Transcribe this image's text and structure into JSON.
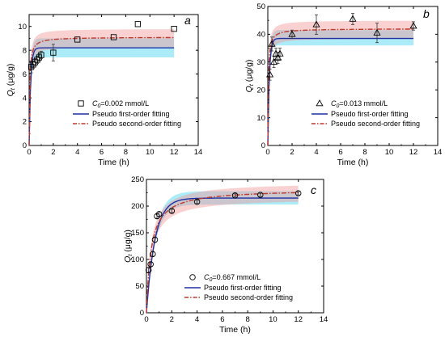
{
  "colors": {
    "first_order": "#1f2fa3",
    "second_order": "#c0392b",
    "band_first": "#66dcf2",
    "band_second": "#f29a9a",
    "band_overlap": "#b9b2b2"
  },
  "chart_data": [
    {
      "type": "line",
      "panel_label": "a",
      "xlabel": "Time (h)",
      "ylabel_main": "Q",
      "ylabel_sub": "t",
      "ylabel_unit": " (μg/g)",
      "xlim": [
        0,
        14
      ],
      "ylim": [
        0,
        11
      ],
      "xticks": [
        "0",
        "2",
        "4",
        "6",
        "8",
        "10",
        "12",
        "14"
      ],
      "yticks": [
        "0",
        "2",
        "4",
        "6",
        "8",
        "10"
      ],
      "marker": "square",
      "legend": {
        "c0_var": "C",
        "c0_sub": "0",
        "c0_value": "=0.002 mmol/L",
        "first_order": "Pseudo first-order fitting",
        "second_order": "Pseudo second-order fitting"
      },
      "series": [
        {
          "kind": "observed",
          "x": [
            0.17,
            0.33,
            0.5,
            0.67,
            0.83,
            1.0,
            2.0,
            4.0,
            7.0,
            9.0,
            12.0
          ],
          "y": [
            6.6,
            6.8,
            7.0,
            7.2,
            7.4,
            7.6,
            7.8,
            8.9,
            9.1,
            10.2,
            9.8
          ],
          "err": [
            0.5,
            0.3,
            0.3,
            0.3,
            0.3,
            0.3,
            0.7,
            0,
            0,
            0,
            0
          ]
        },
        {
          "kind": "first_order",
          "qe": 8.2,
          "k": 8.0,
          "band_low": 7.4,
          "band_high": 9.0
        },
        {
          "kind": "second_order",
          "qe": 9.1,
          "k2": 2.5,
          "band_low": 8.3,
          "band_high": 9.8
        }
      ]
    },
    {
      "type": "line",
      "panel_label": "b",
      "xlabel": "Time (h)",
      "ylabel_main": "Q",
      "ylabel_sub": "t",
      "ylabel_unit": " (μg/g)",
      "xlim": [
        0,
        14
      ],
      "ylim": [
        0,
        50
      ],
      "xticks": [
        "0",
        "2",
        "4",
        "6",
        "8",
        "10",
        "12",
        "14"
      ],
      "yticks": [
        "0",
        "10",
        "20",
        "30",
        "40",
        "50"
      ],
      "marker": "triangle",
      "legend": {
        "c0_var": "C",
        "c0_sub": "0",
        "c0_value": "=0.013 mmol/L",
        "first_order": "Pseudo first-order fitting",
        "second_order": "Pseudo second-order fitting"
      },
      "series": [
        {
          "kind": "observed",
          "x": [
            0.17,
            0.33,
            0.5,
            0.67,
            0.83,
            1.0,
            2.0,
            4.0,
            7.0,
            9.0,
            12.0
          ],
          "y": [
            25.5,
            36.5,
            30.0,
            33.0,
            31.5,
            33.0,
            40.0,
            43.5,
            45.5,
            40.5,
            43.0
          ],
          "err": [
            2.0,
            2.5,
            2.0,
            2.0,
            2.0,
            2.0,
            1.5,
            3.5,
            2.0,
            3.5,
            1.5
          ]
        },
        {
          "kind": "first_order",
          "qe": 38.5,
          "k": 8.0,
          "band_low": 36.0,
          "band_high": 41.5
        },
        {
          "kind": "second_order",
          "qe": 42.0,
          "k2": 0.6,
          "band_low": 38.5,
          "band_high": 45.0
        }
      ]
    },
    {
      "type": "line",
      "panel_label": "c",
      "xlabel": "Time (h)",
      "ylabel_main": "Q",
      "ylabel_sub": "t",
      "ylabel_unit": " (μg/g)",
      "xlim": [
        0,
        14
      ],
      "ylim": [
        0,
        250
      ],
      "xticks": [
        "0",
        "2",
        "4",
        "6",
        "8",
        "10",
        "12",
        "14"
      ],
      "yticks": [
        "0",
        "50",
        "100",
        "150",
        "200",
        "250"
      ],
      "marker": "circle",
      "legend": {
        "c0_var": "C",
        "c0_sub": "0",
        "c0_value": "=0.667 mmol/L",
        "first_order": "Pseudo first-order fitting",
        "second_order": "Pseudo second-order fitting"
      },
      "series": [
        {
          "kind": "observed",
          "x": [
            0.17,
            0.33,
            0.5,
            0.67,
            0.83,
            1.0,
            2.0,
            4.0,
            7.0,
            9.0,
            12.0
          ],
          "y": [
            80,
            91,
            110,
            137,
            181,
            185,
            191,
            208,
            220,
            221,
            224
          ],
          "err": [
            5,
            4,
            4,
            5,
            4,
            4,
            3,
            3,
            3,
            3,
            3
          ]
        },
        {
          "kind": "first_order",
          "qe": 215,
          "k": 1.5,
          "band_low": 203,
          "band_high": 228
        },
        {
          "kind": "second_order",
          "qe": 232,
          "k2": 0.012,
          "band_low": 215,
          "band_high": 245
        }
      ]
    }
  ]
}
